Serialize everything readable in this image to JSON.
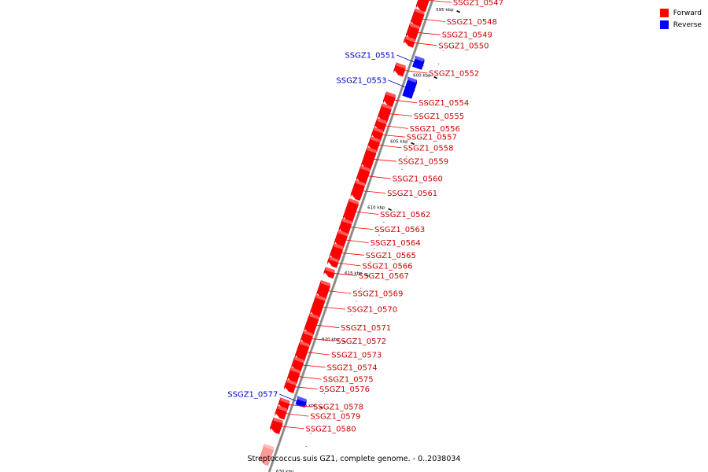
{
  "caption": "Streptococcus suis GZ1, complete genome. - 0..2038034",
  "legend": [
    {
      "label": "Forward",
      "color": "#ff0000"
    },
    {
      "label": "Reverse",
      "color": "#0000ff"
    }
  ],
  "colors": {
    "forward": "#ff0000",
    "reverse": "#0000ff",
    "backbone": "#888888",
    "forward_leader": "#ff0000",
    "reverse_leader": "#0000cc"
  },
  "view_range_kbp": [
    595,
    630
  ],
  "tick_labels": [
    "595 kbp",
    "600 kbp",
    "605 kbp",
    "610 kbp",
    "615 kbp",
    "620 kbp",
    "625 kbp",
    "630 kbp"
  ],
  "genes": [
    {
      "name": "SSGZ1_0547",
      "strand": "forward",
      "start_kbp": 594.4,
      "end_kbp": 595.8
    },
    {
      "name": "SSGZ1_0548",
      "strand": "forward",
      "start_kbp": 596.0,
      "end_kbp": 597.0
    },
    {
      "name": "SSGZ1_0549",
      "strand": "forward",
      "start_kbp": 597.1,
      "end_kbp": 598.0
    },
    {
      "name": "SSGZ1_0550",
      "strand": "forward",
      "start_kbp": 598.1,
      "end_kbp": 598.5
    },
    {
      "name": "SSGZ1_0551",
      "strand": "reverse",
      "start_kbp": 599.2,
      "end_kbp": 599.8
    },
    {
      "name": "SSGZ1_0552",
      "strand": "forward",
      "start_kbp": 600.1,
      "end_kbp": 600.7
    },
    {
      "name": "SSGZ1_0553",
      "strand": "reverse",
      "start_kbp": 600.8,
      "end_kbp": 602.0
    },
    {
      "name": "SSGZ1_0554",
      "strand": "forward",
      "start_kbp": 602.3,
      "end_kbp": 603.0
    },
    {
      "name": "SSGZ1_0555",
      "strand": "forward",
      "start_kbp": 603.2,
      "end_kbp": 604.2
    },
    {
      "name": "SSGZ1_0556",
      "strand": "forward",
      "start_kbp": 604.3,
      "end_kbp": 604.9
    },
    {
      "name": "SSGZ1_0557",
      "strand": "forward",
      "start_kbp": 605.0,
      "end_kbp": 605.6
    },
    {
      "name": "SSGZ1_0558",
      "strand": "forward",
      "start_kbp": 605.7,
      "end_kbp": 606.4
    },
    {
      "name": "SSGZ1_0559",
      "strand": "forward",
      "start_kbp": 606.5,
      "end_kbp": 607.8
    },
    {
      "name": "SSGZ1_0560",
      "strand": "forward",
      "start_kbp": 607.9,
      "end_kbp": 608.9
    },
    {
      "name": "SSGZ1_0561",
      "strand": "forward",
      "start_kbp": 609.0,
      "end_kbp": 610.1
    },
    {
      "name": "SSGZ1_0562",
      "strand": "forward",
      "start_kbp": 610.4,
      "end_kbp": 611.8
    },
    {
      "name": "SSGZ1_0563",
      "strand": "forward",
      "start_kbp": 611.9,
      "end_kbp": 612.7
    },
    {
      "name": "SSGZ1_0564",
      "strand": "forward",
      "start_kbp": 612.8,
      "end_kbp": 613.7
    },
    {
      "name": "SSGZ1_0565",
      "strand": "forward",
      "start_kbp": 613.8,
      "end_kbp": 614.7
    },
    {
      "name": "SSGZ1_0566",
      "strand": "forward",
      "start_kbp": 614.8,
      "end_kbp": 615.2
    },
    {
      "name": "SSGZ1_0567",
      "strand": "forward",
      "start_kbp": 615.6,
      "end_kbp": 616.0
    },
    {
      "name": "SSGZ1_0569",
      "strand": "forward",
      "start_kbp": 616.6,
      "end_kbp": 617.6
    },
    {
      "name": "SSGZ1_0570",
      "strand": "forward",
      "start_kbp": 617.7,
      "end_kbp": 619.0
    },
    {
      "name": "SSGZ1_0571",
      "strand": "forward",
      "start_kbp": 619.1,
      "end_kbp": 620.3
    },
    {
      "name": "SSGZ1_0572",
      "strand": "forward",
      "start_kbp": 620.4,
      "end_kbp": 621.1
    },
    {
      "name": "SSGZ1_0573",
      "strand": "forward",
      "start_kbp": 621.2,
      "end_kbp": 622.3
    },
    {
      "name": "SSGZ1_0574",
      "strand": "forward",
      "start_kbp": 622.4,
      "end_kbp": 623.1
    },
    {
      "name": "SSGZ1_0575",
      "strand": "forward",
      "start_kbp": 623.2,
      "end_kbp": 624.0
    },
    {
      "name": "SSGZ1_0576",
      "strand": "forward",
      "start_kbp": 624.1,
      "end_kbp": 624.7
    },
    {
      "name": "SSGZ1_0577",
      "strand": "reverse",
      "start_kbp": 625.0,
      "end_kbp": 625.4
    },
    {
      "name": "SSGZ1_0578",
      "strand": "forward",
      "start_kbp": 625.5,
      "end_kbp": 626.0
    },
    {
      "name": "SSGZ1_0579",
      "strand": "forward",
      "start_kbp": 626.1,
      "end_kbp": 626.7
    },
    {
      "name": "SSGZ1_0580",
      "strand": "forward",
      "start_kbp": 627.0,
      "end_kbp": 627.8
    }
  ],
  "partial_gene": {
    "strand": "forward",
    "start_kbp": 629.0,
    "end_kbp": 630.2
  }
}
